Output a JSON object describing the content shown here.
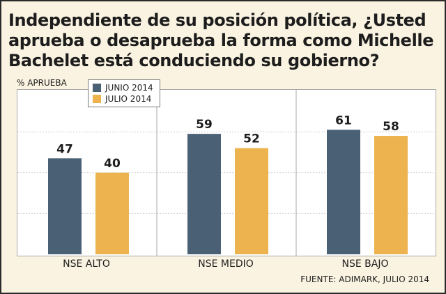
{
  "title": "Independiente de su posición política, ¿Usted aprueba o desaprueba la forma como Michelle Bachelet está conduciendo su gobierno?",
  "source": "FUENTE: ADIMARK, JULIO 2014",
  "colors": {
    "background": "#faf3e1",
    "series1": "#4a6075",
    "series2": "#ecb34e"
  },
  "chart_data": {
    "type": "bar",
    "title": "Independiente de su posición política, ¿Usted aprueba o desaprueba la forma como Michelle Bachelet está conduciendo su gobierno?",
    "ylabel": "% APRUEBA",
    "xlabel": "",
    "ylim": [
      0,
      80
    ],
    "grid": true,
    "legend_position": "top-left",
    "categories": [
      "NSE ALTO",
      "NSE MEDIO",
      "NSE BAJO"
    ],
    "series": [
      {
        "name": "JUNIO 2014",
        "color": "#4a6075",
        "values": [
          47,
          59,
          61
        ]
      },
      {
        "name": "JULIO 2014",
        "color": "#ecb34e",
        "values": [
          40,
          52,
          58
        ]
      }
    ]
  }
}
